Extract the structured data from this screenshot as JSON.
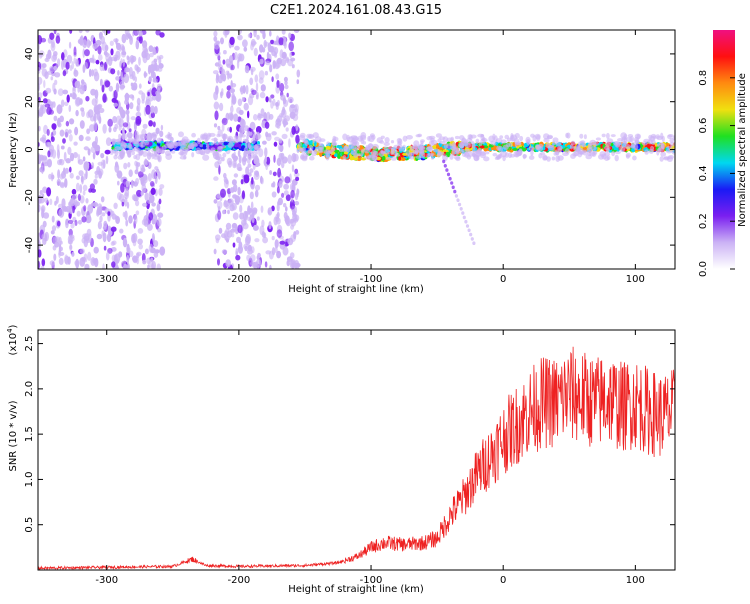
{
  "figure": {
    "title": "C2E1.2024.161.08.43.G15"
  },
  "colors": {
    "snr_line": "#ee2222",
    "background": "#ffffff",
    "axis": "#000000",
    "colormap": [
      "#ffffff",
      "#cbb2f5",
      "#7a1ff0",
      "#1a1af5",
      "#00d8f0",
      "#20e020",
      "#f0e010",
      "#ff8a10",
      "#ff1010",
      "#f01080"
    ]
  },
  "chart_data": [
    {
      "type": "heatmap",
      "title": "",
      "xlabel": "Height of straight line (km)",
      "ylabel": "Frequency (Hz)",
      "xlim": [
        -352,
        130
      ],
      "ylim": [
        -50,
        50
      ],
      "xticks": [
        -300,
        -200,
        -100,
        0,
        100
      ],
      "yticks": [
        -40,
        -20,
        0,
        20,
        40
      ],
      "colorbar": {
        "label": "Normalized spectral amplitude",
        "range": [
          0.0,
          1.0
        ],
        "ticks": [
          0.0,
          0.2,
          0.4,
          0.6,
          0.8
        ]
      },
      "regions": [
        {
          "x_range": [
            -352,
            -258
          ],
          "description": "broadband noise",
          "amplitude": 0.3
        },
        {
          "x_range": [
            -218,
            -155
          ],
          "description": "broadband noise",
          "amplitude": 0.3
        },
        {
          "x_range": [
            -295,
            -185
          ],
          "center_hz": 1.5,
          "amplitude": 0.45
        },
        {
          "x_range": [
            -155,
            130
          ],
          "center_hz": 1.0,
          "amplitude": 0.75
        }
      ]
    },
    {
      "type": "line",
      "title": "",
      "xlabel": "Height of straight line (km)",
      "ylabel": "SNR (10 * v/v)",
      "yscale_label": "(x10^4)",
      "xlim": [
        -352,
        130
      ],
      "ylim": [
        0,
        2.65
      ],
      "xticks": [
        -300,
        -200,
        -100,
        0,
        100
      ],
      "yticks": [
        0.5,
        1.0,
        1.5,
        2.0,
        2.5
      ],
      "series": [
        {
          "x": [
            -352,
            -300,
            -250,
            -235,
            -225,
            -200,
            -150,
            -125,
            -110,
            -100,
            -90,
            -75,
            -60,
            -50,
            -40,
            -30,
            -20,
            -10,
            0,
            10,
            20,
            30,
            40,
            50,
            60,
            70,
            80,
            90,
            100,
            110,
            120,
            130
          ],
          "values": [
            0.02,
            0.03,
            0.04,
            0.12,
            0.05,
            0.04,
            0.05,
            0.08,
            0.15,
            0.25,
            0.3,
            0.28,
            0.3,
            0.35,
            0.6,
            0.8,
            1.05,
            1.25,
            1.45,
            1.6,
            1.75,
            1.85,
            1.85,
            1.95,
            1.9,
            1.85,
            1.9,
            1.8,
            1.85,
            1.75,
            1.7,
            1.75
          ]
        }
      ]
    }
  ]
}
